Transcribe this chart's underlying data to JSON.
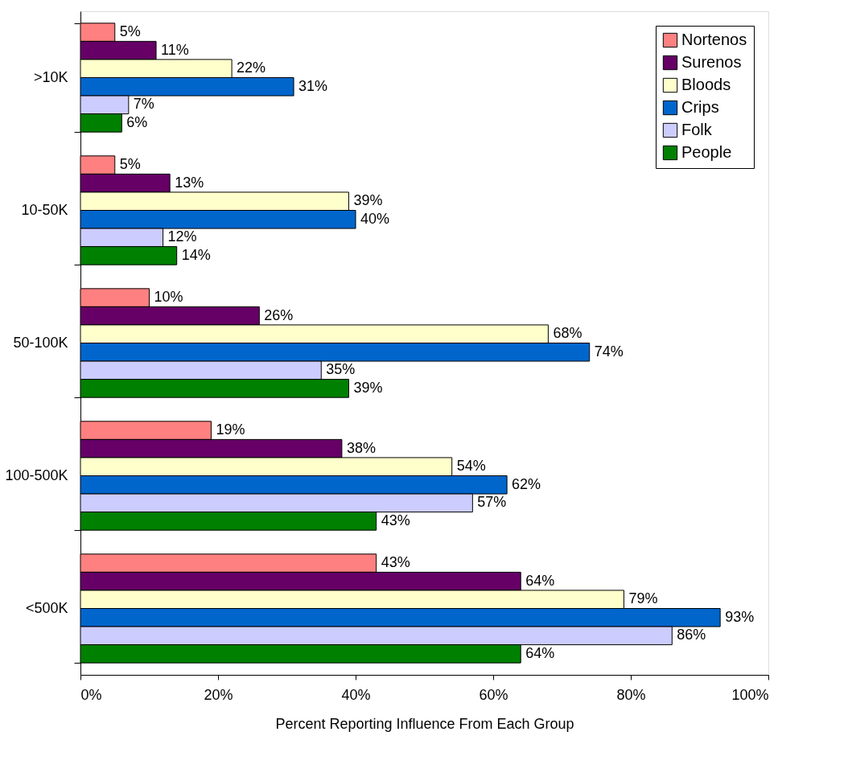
{
  "chart_data": {
    "type": "bar",
    "orientation": "horizontal",
    "xlabel": "Percent Reporting Influence From Each Group",
    "categories": [
      ">10K",
      "10-50K",
      "50-100K",
      "100-500K",
      "<500K"
    ],
    "xlim": [
      0,
      100
    ],
    "xticks": [
      {
        "value": 0,
        "label": "0%"
      },
      {
        "value": 20,
        "label": "20%"
      },
      {
        "value": 40,
        "label": "40%"
      },
      {
        "value": 60,
        "label": "60%"
      },
      {
        "value": 80,
        "label": "80%"
      },
      {
        "value": 100,
        "label": "100%"
      }
    ],
    "grid": false,
    "legend": "top right",
    "series": [
      {
        "name": "Nortenos",
        "color": "#ff8080",
        "values": [
          5,
          5,
          10,
          19,
          43
        ],
        "value_labels": [
          "5%",
          "5%",
          "10%",
          "19%",
          "43%"
        ]
      },
      {
        "name": "Surenos",
        "color": "#660066",
        "values": [
          11,
          13,
          26,
          38,
          64
        ],
        "value_labels": [
          "11%",
          "13%",
          "26%",
          "38%",
          "64%"
        ]
      },
      {
        "name": "Bloods",
        "color": "#ffffcc",
        "values": [
          22,
          39,
          68,
          54,
          79
        ],
        "value_labels": [
          "22%",
          "39%",
          "68%",
          "54%",
          "79%"
        ]
      },
      {
        "name": "Crips",
        "color": "#0066cc",
        "values": [
          31,
          40,
          74,
          62,
          93
        ],
        "value_labels": [
          "31%",
          "40%",
          "74%",
          "62%",
          "93%"
        ]
      },
      {
        "name": "Folk",
        "color": "#ccccff",
        "values": [
          7,
          12,
          35,
          57,
          86
        ],
        "value_labels": [
          "7%",
          "12%",
          "35%",
          "57%",
          "86%"
        ]
      },
      {
        "name": "People",
        "color": "#008000",
        "values": [
          6,
          14,
          39,
          43,
          64
        ],
        "value_labels": [
          "6%",
          "14%",
          "39%",
          "43%",
          "64%"
        ]
      }
    ]
  }
}
